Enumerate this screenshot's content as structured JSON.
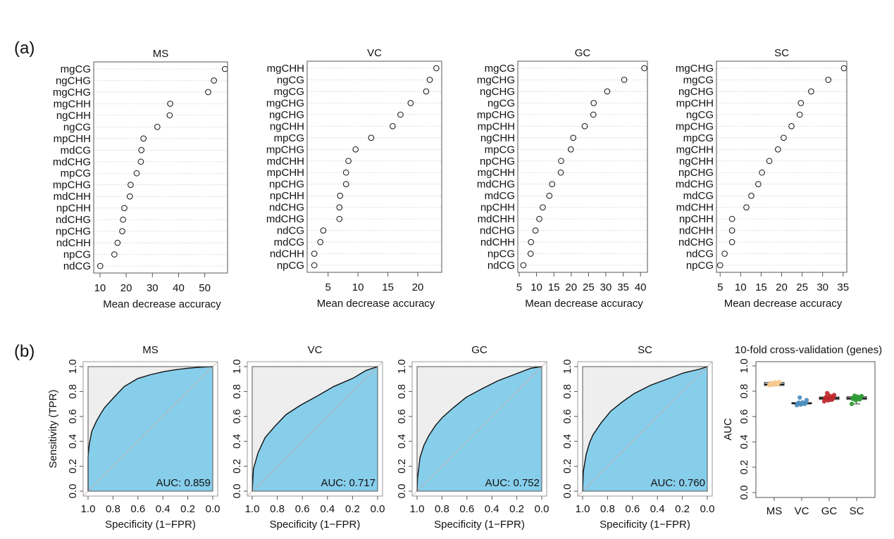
{
  "figure": {
    "panel_a_label": "(a)",
    "panel_b_label": "(b)"
  },
  "chart_data": [
    {
      "type": "scatter",
      "panel": "a",
      "title": "MS",
      "xlabel": "Mean decrease accuracy",
      "ylabel": "",
      "xlim": [
        7.6,
        58.7
      ],
      "xticks": [
        10,
        20,
        30,
        40,
        50
      ],
      "grid": "horizontal-dotted",
      "features": [
        "mgCG",
        "ngCHG",
        "mgCHG",
        "mgCHH",
        "ngCHH",
        "ngCG",
        "mpCHH",
        "mdCG",
        "mdCHG",
        "mpCG",
        "mpCHG",
        "mdCHH",
        "npCHH",
        "ndCHG",
        "npCHG",
        "ndCHH",
        "npCG",
        "ndCG"
      ],
      "values": [
        57.7,
        53.5,
        51.3,
        36.8,
        36.6,
        31.9,
        26.6,
        25.8,
        25.6,
        24.0,
        21.7,
        21.4,
        19.3,
        18.8,
        18.5,
        16.7,
        15.5,
        10.1
      ]
    },
    {
      "type": "scatter",
      "panel": "a",
      "title": "VC",
      "xlabel": "Mean decrease accuracy",
      "ylabel": "",
      "xlim": [
        1.5,
        24.0
      ],
      "xticks": [
        5,
        10,
        15,
        20
      ],
      "grid": "horizontal-dotted",
      "features": [
        "mgCHH",
        "ngCG",
        "mgCG",
        "mgCHG",
        "ngCHG",
        "ngCHH",
        "mpCG",
        "mpCHG",
        "mdCHH",
        "mpCHH",
        "npCHG",
        "npCHH",
        "ndCHG",
        "mdCHG",
        "ndCG",
        "mdCG",
        "ndCHH",
        "npCG"
      ],
      "values": [
        23.1,
        22.0,
        21.4,
        18.8,
        17.1,
        15.8,
        12.2,
        9.6,
        8.4,
        8.0,
        8.0,
        7.0,
        6.9,
        6.9,
        4.2,
        3.7,
        2.7,
        2.7
      ]
    },
    {
      "type": "scatter",
      "panel": "a",
      "title": "GC",
      "xlabel": "Mean decrease accuracy",
      "ylabel": "",
      "xlim": [
        4.6,
        42.0
      ],
      "xticks": [
        5,
        10,
        15,
        20,
        25,
        30,
        35,
        40
      ],
      "grid": "horizontal-dotted",
      "features": [
        "mgCG",
        "mgCHG",
        "ngCHG",
        "ngCG",
        "mpCHG",
        "mpCHH",
        "ngCHH",
        "mpCG",
        "npCHG",
        "mgCHH",
        "mdCHG",
        "mdCG",
        "npCHH",
        "mdCHH",
        "ndCHG",
        "ndCHH",
        "npCG",
        "ndCG"
      ],
      "values": [
        41.1,
        35.3,
        30.4,
        26.5,
        26.4,
        23.9,
        20.6,
        19.9,
        17.1,
        17.0,
        14.5,
        13.7,
        11.8,
        10.8,
        9.7,
        8.4,
        8.3,
        6.2
      ]
    },
    {
      "type": "scatter",
      "panel": "a",
      "title": "SC",
      "xlabel": "Mean decrease accuracy",
      "ylabel": "",
      "xlim": [
        4.1,
        35.9
      ],
      "xticks": [
        5,
        10,
        15,
        20,
        25,
        30,
        35
      ],
      "grid": "horizontal-dotted",
      "features": [
        "mgCHG",
        "mgCG",
        "ngCHG",
        "mpCHH",
        "ngCG",
        "mpCHG",
        "mpCG",
        "mgCHH",
        "ngCHH",
        "npCHG",
        "mdCHG",
        "mdCG",
        "mdCHH",
        "npCHH",
        "ndCHH",
        "ndCHG",
        "ndCG",
        "npCG"
      ],
      "values": [
        35.2,
        31.4,
        27.2,
        24.7,
        24.4,
        22.4,
        20.5,
        19.1,
        17.0,
        15.2,
        14.3,
        12.6,
        11.4,
        7.9,
        7.9,
        7.9,
        6.1,
        5.0
      ]
    },
    {
      "type": "area",
      "panel": "b",
      "subtype": "roc",
      "title": "MS",
      "xlabel": "Specificity (1−FPR)",
      "ylabel": "Sensitivity (TPR)",
      "xlim": [
        1.0,
        0.0
      ],
      "ylim": [
        0.0,
        1.0
      ],
      "xticks": [
        "1.0",
        "0.8",
        "0.6",
        "0.4",
        "0.2",
        "0.0"
      ],
      "yticks": [
        "0.0",
        "0.2",
        "0.4",
        "0.6",
        "0.8",
        "1.0"
      ],
      "auc_label": "AUC: 0.859",
      "auc": 0.859,
      "fill_color": "#87CEEB",
      "bg_color": "#EEEEEE",
      "specificity": [
        1.0,
        1.0,
        0.99,
        0.97,
        0.934,
        0.9,
        0.868,
        0.8,
        0.71,
        0.6,
        0.5,
        0.39,
        0.3,
        0.2,
        0.1,
        0.0
      ],
      "sensitivity": [
        0.0,
        0.28,
        0.38,
        0.48,
        0.56,
        0.62,
        0.67,
        0.745,
        0.84,
        0.905,
        0.935,
        0.96,
        0.975,
        0.987,
        0.995,
        1.0
      ]
    },
    {
      "type": "area",
      "panel": "b",
      "subtype": "roc",
      "title": "VC",
      "xlabel": "Specificity (1−FPR)",
      "ylabel": "",
      "xlim": [
        1.0,
        0.0
      ],
      "ylim": [
        0.0,
        1.0
      ],
      "xticks": [
        "1.0",
        "0.8",
        "0.6",
        "0.4",
        "0.2",
        "0.0"
      ],
      "yticks": [
        "0.0",
        "0.2",
        "0.4",
        "0.6",
        "0.8",
        "1.0"
      ],
      "auc_label": "AUC: 0.717",
      "auc": 0.717,
      "fill_color": "#87CEEB",
      "bg_color": "#EEEEEE",
      "specificity": [
        1.0,
        0.99,
        0.953,
        0.897,
        0.82,
        0.73,
        0.615,
        0.48,
        0.35,
        0.2,
        0.09,
        0.0
      ],
      "sensitivity": [
        0.0,
        0.18,
        0.31,
        0.43,
        0.52,
        0.615,
        0.69,
        0.765,
        0.84,
        0.905,
        0.97,
        1.0
      ]
    },
    {
      "type": "area",
      "panel": "b",
      "subtype": "roc",
      "title": "GC",
      "xlabel": "Specificity (1−FPR)",
      "ylabel": "",
      "xlim": [
        1.0,
        0.0
      ],
      "ylim": [
        0.0,
        1.0
      ],
      "xticks": [
        "1.0",
        "0.8",
        "0.6",
        "0.4",
        "0.2",
        "0.0"
      ],
      "yticks": [
        "0.0",
        "0.2",
        "0.4",
        "0.6",
        "0.8",
        "1.0"
      ],
      "auc_label": "AUC: 0.752",
      "auc": 0.752,
      "fill_color": "#87CEEB",
      "bg_color": "#EEEEEE",
      "specificity": [
        1.0,
        0.996,
        0.976,
        0.944,
        0.906,
        0.85,
        0.793,
        0.709,
        0.605,
        0.483,
        0.35,
        0.2,
        0.088,
        0.0
      ],
      "sensitivity": [
        0.0,
        0.107,
        0.27,
        0.37,
        0.445,
        0.53,
        0.595,
        0.67,
        0.755,
        0.82,
        0.887,
        0.944,
        0.987,
        1.0
      ]
    },
    {
      "type": "area",
      "panel": "b",
      "subtype": "roc",
      "title": "SC",
      "xlabel": "Specificity (1−FPR)",
      "ylabel": "",
      "xlim": [
        1.0,
        0.0
      ],
      "ylim": [
        0.0,
        1.0
      ],
      "xticks": [
        "1.0",
        "0.8",
        "0.6",
        "0.4",
        "0.2",
        "0.0"
      ],
      "yticks": [
        "0.0",
        "0.2",
        "0.4",
        "0.6",
        "0.8",
        "1.0"
      ],
      "auc_label": "AUC: 0.760",
      "auc": 0.76,
      "fill_color": "#87CEEB",
      "bg_color": "#EEEEEE",
      "specificity": [
        1.0,
        0.994,
        0.972,
        0.944,
        0.915,
        0.85,
        0.774,
        0.68,
        0.586,
        0.455,
        0.305,
        0.19,
        0.06,
        0.0
      ],
      "sensitivity": [
        0.0,
        0.16,
        0.295,
        0.39,
        0.455,
        0.55,
        0.643,
        0.718,
        0.784,
        0.85,
        0.906,
        0.95,
        0.98,
        1.0
      ]
    },
    {
      "type": "box",
      "panel": "b",
      "title": "10-fold cross-validation (genes)",
      "xlabel": "",
      "ylabel": "AUC",
      "ylim": [
        0.0,
        1.0
      ],
      "yticks": [
        "0.0",
        "0.2",
        "0.4",
        "0.6",
        "0.8",
        "1.0"
      ],
      "categories": [
        "MS",
        "VC",
        "GC",
        "SC"
      ],
      "series": [
        {
          "name": "MS",
          "color": "#F9C98F",
          "min": 0.845,
          "q1": 0.845,
          "median": 0.855,
          "q3": 0.87,
          "max": 0.875,
          "points": [
            0.848,
            0.852,
            0.855,
            0.858,
            0.86,
            0.862,
            0.866,
            0.87,
            0.873,
            0.85
          ]
        },
        {
          "name": "VC",
          "color": "#4F8FC0",
          "min": 0.69,
          "q1": 0.7,
          "median": 0.705,
          "q3": 0.71,
          "max": 0.72,
          "points": [
            0.69,
            0.695,
            0.7,
            0.702,
            0.705,
            0.707,
            0.71,
            0.712,
            0.73,
            0.75
          ]
        },
        {
          "name": "GC",
          "color": "#C0282D",
          "min": 0.72,
          "q1": 0.735,
          "median": 0.745,
          "q3": 0.755,
          "max": 0.785,
          "points": [
            0.72,
            0.728,
            0.735,
            0.74,
            0.745,
            0.75,
            0.755,
            0.762,
            0.77,
            0.785
          ]
        },
        {
          "name": "SC",
          "color": "#2E9C34",
          "min": 0.7,
          "q1": 0.735,
          "median": 0.745,
          "q3": 0.757,
          "max": 0.765,
          "points": [
            0.7,
            0.728,
            0.735,
            0.74,
            0.745,
            0.748,
            0.752,
            0.757,
            0.762,
            0.765
          ]
        }
      ]
    }
  ]
}
